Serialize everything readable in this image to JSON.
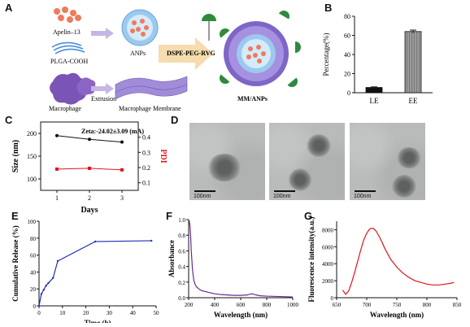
{
  "panels": {
    "A": {
      "letter": "A",
      "labels": {
        "apelin": "Apelin–13",
        "plga": "PLGA-COOH",
        "macrophage": "Macrophage",
        "extrusion": "Extrusion",
        "anps": "ANPs",
        "dspe": "DSPE-PEG-RVG",
        "membrane": "Macrophage Membrane",
        "mm_anps": "MM/ANPs"
      }
    },
    "B": {
      "letter": "B"
    },
    "C": {
      "letter": "C"
    },
    "D": {
      "letter": "D",
      "scale_labels": [
        "100nm",
        "100nm",
        "100nm"
      ]
    },
    "E": {
      "letter": "E"
    },
    "F": {
      "letter": "F"
    },
    "G": {
      "letter": "G"
    }
  },
  "colors": {
    "blue_line": "#1f2fb5",
    "purple_line": "#6b2a8f",
    "red_line": "#e0141e",
    "black_line": "#111111",
    "red_marker": "#e0141e",
    "purple_np": "#8f7ad0",
    "green_ligand": "#2f8a3c"
  },
  "chart_data": [
    {
      "id": "B",
      "type": "bar",
      "categories": [
        "LE",
        "EE"
      ],
      "values": [
        5.5,
        64
      ],
      "errors": [
        0.6,
        1.5
      ],
      "ylabel": "Percentage(%)",
      "xlabel": "",
      "ylim": [
        0,
        80
      ],
      "yticks": [
        0,
        20,
        40,
        60,
        80
      ],
      "bar_fill": [
        "#111111",
        "pattern-grey"
      ]
    },
    {
      "id": "C",
      "type": "line",
      "annotation": "Zeta:-24.02±3.09 (mA)",
      "x": [
        1,
        2,
        3
      ],
      "xlabel": "Days",
      "ylabel": "Size (nm)",
      "y2label": "PDI",
      "ylim": [
        75,
        225
      ],
      "y2lim": [
        0.05,
        0.5
      ],
      "yticks": [
        100,
        150,
        200
      ],
      "y2ticks": [
        0.1,
        0.2,
        0.3,
        0.4
      ],
      "series": [
        {
          "name": "",
          "axis": "left",
          "values": [
            195,
            187,
            181
          ],
          "color": "#111111",
          "marker": "circle"
        },
        {
          "name": "",
          "axis": "right",
          "values": [
            0.19,
            0.195,
            0.185
          ],
          "color": "#e0141e",
          "marker": "square"
        }
      ],
      "grid": false
    },
    {
      "id": "E",
      "type": "line",
      "xlabel": "Time (h)",
      "ylabel": "Cumulative Release (%)",
      "xlim": [
        0,
        50
      ],
      "ylim": [
        0,
        100
      ],
      "xticks": [
        0,
        10,
        20,
        30,
        40,
        50
      ],
      "yticks": [
        0,
        20,
        40,
        60,
        80,
        100
      ],
      "series": [
        {
          "name": "",
          "x": [
            0,
            1,
            2,
            3,
            4,
            6,
            8,
            24,
            48
          ],
          "values": [
            0,
            14,
            19,
            24,
            27,
            33,
            53,
            76,
            77
          ],
          "color": "#1f2fb5"
        }
      ]
    },
    {
      "id": "F",
      "type": "line",
      "xlabel": "Wavelength (nm)",
      "ylabel": "Absorbance",
      "xlim": [
        200,
        1000
      ],
      "ylim": [
        0,
        1.0
      ],
      "xticks": [
        200,
        400,
        600,
        800,
        1000
      ],
      "yticks": [
        0.0,
        0.2,
        0.4,
        0.6,
        0.8,
        1.0
      ],
      "series": [
        {
          "name": "",
          "x": [
            200,
            205,
            210,
            215,
            220,
            230,
            240,
            250,
            260,
            280,
            300,
            350,
            400,
            450,
            500,
            550,
            600,
            650,
            680,
            700,
            720,
            750,
            800,
            900,
            1000
          ],
          "values": [
            1.0,
            0.98,
            0.92,
            0.8,
            0.6,
            0.35,
            0.22,
            0.17,
            0.14,
            0.11,
            0.09,
            0.07,
            0.05,
            0.04,
            0.035,
            0.03,
            0.03,
            0.035,
            0.05,
            0.045,
            0.035,
            0.025,
            0.02,
            0.015,
            0.01
          ],
          "color": "#6b2a8f"
        }
      ]
    },
    {
      "id": "G",
      "type": "line",
      "xlabel": "Wavelength (nm)",
      "ylabel": "Fluorescence intensity(a.u.)",
      "xlim": [
        650,
        850
      ],
      "ylim": [
        0,
        9000
      ],
      "xticks": [
        650,
        700,
        750,
        800,
        850
      ],
      "yticks": [
        0,
        2000,
        4000,
        6000,
        8000
      ],
      "series": [
        {
          "name": "",
          "x": [
            660,
            665,
            670,
            675,
            680,
            685,
            690,
            695,
            700,
            705,
            710,
            715,
            720,
            725,
            730,
            740,
            750,
            760,
            770,
            780,
            790,
            800,
            810,
            820,
            830,
            840,
            845
          ],
          "values": [
            900,
            400,
            800,
            1800,
            3000,
            4300,
            5600,
            6800,
            7600,
            8100,
            8200,
            7900,
            7300,
            6600,
            5800,
            4500,
            3600,
            2900,
            2400,
            2000,
            1800,
            1600,
            1500,
            1500,
            1600,
            1700,
            1800
          ],
          "color": "#e0141e"
        }
      ]
    }
  ]
}
